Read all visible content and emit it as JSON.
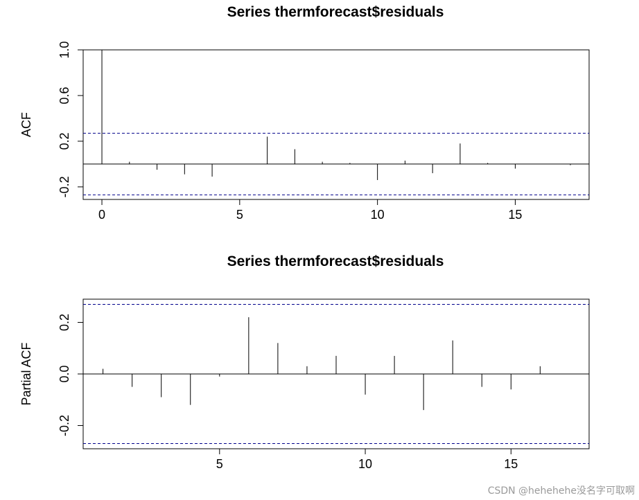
{
  "chart_data": [
    {
      "type": "bar",
      "title": "Series  thermforecast$residuals",
      "ylabel": "ACF",
      "xlabel": "",
      "x": [
        0,
        1,
        2,
        3,
        4,
        5,
        6,
        7,
        8,
        9,
        10,
        11,
        12,
        13,
        14,
        15,
        16,
        17
      ],
      "values": [
        1.0,
        0.02,
        -0.05,
        -0.09,
        -0.11,
        0.0,
        0.24,
        0.13,
        0.02,
        0.01,
        -0.14,
        0.03,
        -0.08,
        0.18,
        0.01,
        -0.04,
        0.0,
        -0.01
      ],
      "conf_limits": [
        0.27,
        -0.27
      ],
      "xlim": [
        -0.68,
        17.68
      ],
      "ylim": [
        -0.31,
        1.0
      ],
      "xticks": [
        "0",
        "5",
        "10",
        "15"
      ],
      "yticks": [
        "-0.2",
        "0.2",
        "0.6",
        "1.0"
      ],
      "grid": false
    },
    {
      "type": "bar",
      "title": "Series  thermforecast$residuals",
      "ylabel": "Partial ACF",
      "xlabel": "",
      "x": [
        1,
        2,
        3,
        4,
        5,
        6,
        7,
        8,
        9,
        10,
        11,
        12,
        13,
        14,
        15,
        16,
        17
      ],
      "values": [
        0.02,
        -0.05,
        -0.09,
        -0.12,
        -0.01,
        0.22,
        0.12,
        0.03,
        0.07,
        -0.08,
        0.07,
        -0.14,
        0.13,
        -0.05,
        -0.06,
        0.03,
        0.0
      ],
      "conf_limits": [
        0.27,
        -0.27
      ],
      "xlim": [
        0.32,
        17.68
      ],
      "ylim": [
        -0.29,
        0.29
      ],
      "xticks": [
        "5",
        "10",
        "15"
      ],
      "yticks": [
        "-0.2",
        "0.0",
        "0.2"
      ],
      "grid": false
    }
  ],
  "watermark": "CSDN @hehehehe没名字可取啊",
  "colors": {
    "ci_line": "#00008b",
    "bars": "#000000",
    "axes": "#000000"
  }
}
